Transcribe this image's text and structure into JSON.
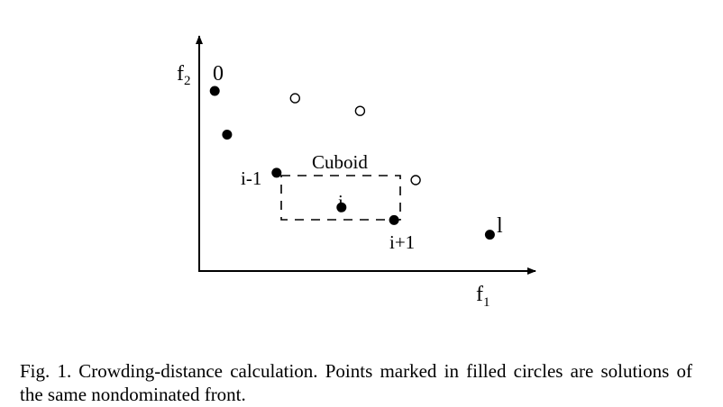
{
  "figure": {
    "axis_x_label": "f",
    "axis_x_subscript": "1",
    "axis_y_label": "f",
    "axis_y_subscript": "2",
    "cuboid_label": "Cuboid",
    "point_labels": {
      "first": "0",
      "prev": "i-1",
      "current": "i",
      "next": "i+1",
      "last": "l"
    }
  },
  "chart_data": {
    "type": "scatter",
    "title": "",
    "xlabel": "f1",
    "ylabel": "f2",
    "grid": false,
    "series": [
      {
        "name": "filled circles",
        "marker": "filled",
        "points": [
          {
            "x": 0.5,
            "y": 9.9,
            "label": "0"
          },
          {
            "x": 0.9,
            "y": 7.5,
            "label": ""
          },
          {
            "x": 2.5,
            "y": 5.4,
            "label": "i-1"
          },
          {
            "x": 4.6,
            "y": 3.5,
            "label": "i"
          },
          {
            "x": 6.3,
            "y": 2.8,
            "label": "i+1"
          },
          {
            "x": 9.4,
            "y": 2.0,
            "label": "l"
          }
        ]
      },
      {
        "name": "open circles",
        "marker": "open",
        "points": [
          {
            "x": 3.1,
            "y": 9.5
          },
          {
            "x": 5.2,
            "y": 8.8
          },
          {
            "x": 7.0,
            "y": 5.0
          }
        ]
      }
    ],
    "cuboid": {
      "x0": 2.5,
      "x1": 6.3,
      "y0": 2.8,
      "y1": 5.4
    }
  },
  "caption": {
    "label": "Fig. 1.",
    "text": "Crowding-distance calculation. Points marked in filled circles are solutions of the same nondominated front."
  },
  "colors": {
    "ink": "#000000",
    "background": "#ffffff"
  }
}
